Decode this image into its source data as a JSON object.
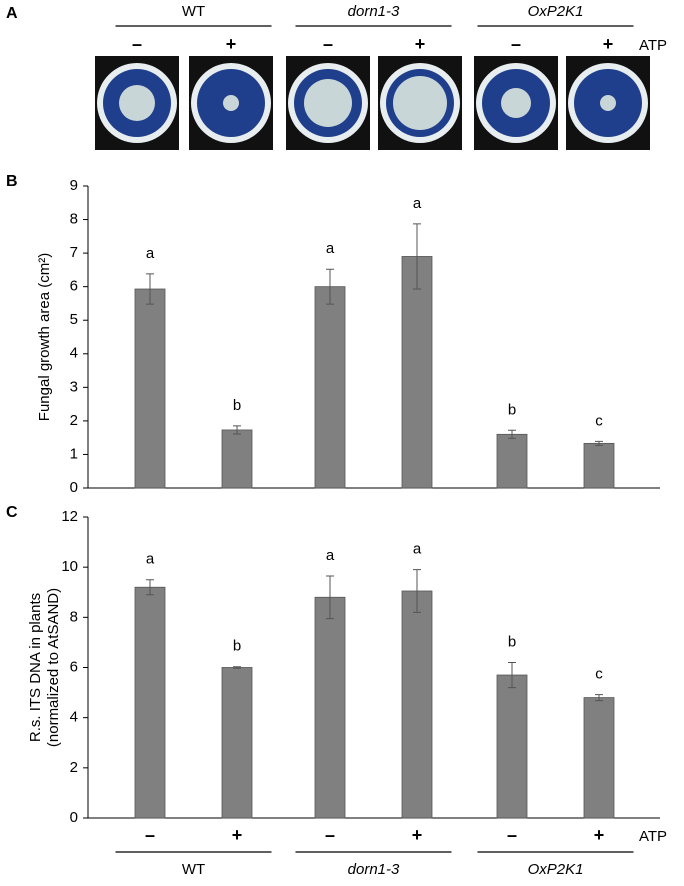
{
  "panel_a": {
    "label": "A",
    "groups": [
      {
        "name": "WT",
        "italic": false
      },
      {
        "name": "dorn1-3",
        "italic": true
      },
      {
        "name": "OxP2K1",
        "italic": true
      }
    ],
    "treatments": [
      "–",
      "+",
      "–",
      "+",
      "–",
      "+"
    ],
    "treatment_label": "ATP"
  },
  "chart_data": [
    {
      "type": "bar",
      "panel_label": "B",
      "ylabel": [
        "Fungal growth area (cm²)"
      ],
      "categories": [
        null,
        null,
        null,
        null,
        null,
        null
      ],
      "values": [
        5.93,
        1.73,
        6.0,
        6.9,
        1.6,
        1.33
      ],
      "errors": [
        0.45,
        0.12,
        0.52,
        0.97,
        0.12,
        0.06
      ],
      "letters": [
        "a",
        "b",
        "a",
        "a",
        "b",
        "c"
      ],
      "color": "#808080",
      "ylim": [
        0,
        9
      ],
      "yticks": [
        0,
        1,
        2,
        3,
        4,
        5,
        6,
        7,
        8,
        9
      ],
      "grid": false
    },
    {
      "type": "bar",
      "panel_label": "C",
      "ylabel": [
        "R.s. ITS DNA in plants",
        "(normalized to AtSAND)"
      ],
      "categories": [
        "–",
        "+",
        "–",
        "+",
        "–",
        "+"
      ],
      "values": [
        9.2,
        6.0,
        8.8,
        9.05,
        5.7,
        4.8
      ],
      "errors": [
        0.3,
        0.03,
        0.85,
        0.85,
        0.5,
        0.12
      ],
      "letters": [
        "a",
        "b",
        "a",
        "a",
        "b",
        "c"
      ],
      "color": "#808080",
      "ylim": [
        0,
        12
      ],
      "yticks": [
        0,
        2,
        4,
        6,
        8,
        10,
        12
      ],
      "grid": false,
      "xlabel": "ATP",
      "groups": [
        {
          "name": "WT",
          "italic": false
        },
        {
          "name": "dorn1-3",
          "italic": true
        },
        {
          "name": "OxP2K1",
          "italic": true
        }
      ]
    }
  ]
}
